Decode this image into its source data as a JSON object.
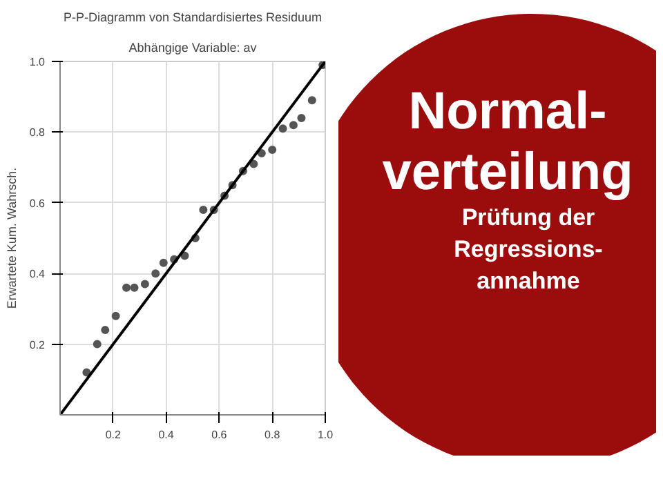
{
  "chart_data": {
    "type": "scatter",
    "title": "P-P-Diagramm von Standardisiertes Residuum",
    "subtitle": "Abhängige Variable: av",
    "ylabel": "Erwartete Kum. Wahrsch.",
    "annotations": [
      "Normal-",
      "verteilung",
      "Prüfung der",
      "Regressions-",
      "annahme"
    ],
    "series": [
      {
        "color": "#555555",
        "x": [
          0.1,
          0.14,
          0.17,
          0.21,
          0.25,
          0.28,
          0.32,
          0.36,
          0.39,
          0.43,
          0.47,
          0.51,
          0.54,
          0.58,
          0.62,
          0.65,
          0.69,
          0.73,
          0.76,
          0.8,
          0.84,
          0.88,
          0.91,
          0.95,
          0.99
        ],
        "values": [
          0.12,
          0.2,
          0.24,
          0.28,
          0.36,
          0.36,
          0.37,
          0.4,
          0.43,
          0.44,
          0.45,
          0.5,
          0.58,
          0.58,
          0.62,
          0.65,
          0.69,
          0.71,
          0.74,
          0.75,
          0.81,
          0.82,
          0.84,
          0.89,
          0.99
        ]
      },
      {
        "type": "line",
        "marker": "none",
        "color": "#000000",
        "x": [
          0,
          1
        ],
        "values": [
          0,
          1
        ]
      }
    ],
    "xlim": [
      0,
      1
    ],
    "ylim": [
      0,
      1
    ],
    "xticks": [
      0.2,
      0.4,
      0.6,
      0.8,
      {
        "value": 1,
        "label": "1.0"
      }
    ],
    "yticks": [
      0.2,
      0.4,
      0.6,
      0.8,
      {
        "value": 1,
        "label": "1.0"
      }
    ],
    "grid": true,
    "marker": "circle",
    "line_style": "solid"
  }
}
